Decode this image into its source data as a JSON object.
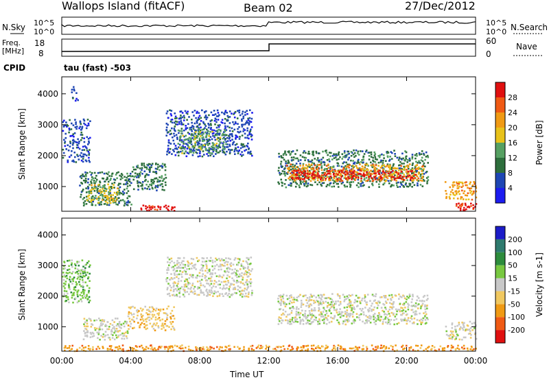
{
  "header": {
    "station": "Wallops Island (fitACF)",
    "beam": "Beam 02",
    "date": "27/Dec/2012"
  },
  "status_panels": {
    "nsky_label": "N.Sky",
    "nsky_top": "10^5",
    "nsky_bottom": "10^0",
    "nsearch_label": "N.Search",
    "nsearch_top": "10^5",
    "nsearch_bottom": "10^0",
    "freq_label": "Freq.",
    "freq_unit": "[MHz]",
    "freq_top": "18",
    "freq_bottom": "8",
    "nave_label": "Nave",
    "nave_top": "60",
    "nave_bottom": "0",
    "cpid_label": "CPID",
    "cpid_value": "tau (fast) -503"
  },
  "colors": {
    "power": [
      "#1c1cf0",
      "#1e46b4",
      "#2d6e3c",
      "#56a062",
      "#e8c21a",
      "#f09a14",
      "#f05a14",
      "#e01010"
    ],
    "velocity": [
      "#e01010",
      "#f05a14",
      "#f09a14",
      "#f0c860",
      "#c8c8c8",
      "#78c840",
      "#2d8c3c",
      "#2e7a6e",
      "#1c1cc8"
    ]
  },
  "chart_data": [
    {
      "type": "heatmap",
      "title": "Power",
      "xlabel": "Time UT",
      "ylabel": "Slant Range [km]",
      "x_ticks": [
        "00:00",
        "04:00",
        "08:00",
        "12:00",
        "16:00",
        "20:00",
        "00:00"
      ],
      "y_ticks": [
        1000,
        2000,
        3000,
        4000
      ],
      "ylim": [
        200,
        4550
      ],
      "colorbar_label": "Power [dB]",
      "colorbar_ticks": [
        4,
        8,
        12,
        16,
        20,
        24,
        28
      ],
      "regions": [
        {
          "t0": 0.0,
          "t1": 1.6,
          "r0": 1800,
          "r1": 3200,
          "level": 1
        },
        {
          "t0": 0.5,
          "t1": 0.9,
          "r0": 3800,
          "r1": 4300,
          "level": 1
        },
        {
          "t0": 1.0,
          "t1": 4.0,
          "r0": 400,
          "r1": 1500,
          "level": 2
        },
        {
          "t0": 1.4,
          "t1": 3.2,
          "r0": 500,
          "r1": 1100,
          "level": 4
        },
        {
          "t0": 4.0,
          "t1": 6.0,
          "r0": 900,
          "r1": 1800,
          "level": 2
        },
        {
          "t0": 4.5,
          "t1": 6.5,
          "r0": 230,
          "r1": 420,
          "level": 7
        },
        {
          "t0": 6.0,
          "t1": 11.0,
          "r0": 2000,
          "r1": 3500,
          "level": 1
        },
        {
          "t0": 6.7,
          "t1": 9.5,
          "r0": 2100,
          "r1": 2900,
          "level": 3
        },
        {
          "t0": 12.5,
          "t1": 21.2,
          "r0": 1000,
          "r1": 2200,
          "level": 2
        },
        {
          "t0": 13.0,
          "t1": 21.0,
          "r0": 1200,
          "r1": 1750,
          "level": 5
        },
        {
          "t0": 13.3,
          "t1": 20.5,
          "r0": 1250,
          "r1": 1550,
          "level": 7
        },
        {
          "t0": 22.2,
          "t1": 24.0,
          "r0": 600,
          "r1": 1200,
          "level": 5
        },
        {
          "t0": 22.8,
          "t1": 24.0,
          "r0": 250,
          "r1": 500,
          "level": 7
        }
      ]
    },
    {
      "type": "heatmap",
      "title": "Velocity",
      "xlabel": "Time UT",
      "ylabel": "Slant Range [km]",
      "x_ticks": [
        "00:00",
        "04:00",
        "08:00",
        "12:00",
        "16:00",
        "20:00",
        "00:00"
      ],
      "y_ticks": [
        1000,
        2000,
        3000,
        4000
      ],
      "ylim": [
        200,
        4550
      ],
      "colorbar_label": "Velocity [m s-1]",
      "colorbar_ticks": [
        -200,
        -100,
        -50,
        -15,
        15,
        50,
        100,
        200
      ],
      "regions": [
        {
          "t0": 0.0,
          "t1": 1.6,
          "r0": 1800,
          "r1": 3200,
          "level": 5
        },
        {
          "t0": 1.2,
          "t1": 3.8,
          "r0": 600,
          "r1": 1300,
          "level": 4
        },
        {
          "t0": 3.8,
          "t1": 6.5,
          "r0": 900,
          "r1": 1700,
          "level": 3
        },
        {
          "t0": 6.0,
          "t1": 11.0,
          "r0": 2000,
          "r1": 3300,
          "level": 4
        },
        {
          "t0": 12.5,
          "t1": 21.2,
          "r0": 1100,
          "r1": 2100,
          "level": 4
        },
        {
          "t0": 0.0,
          "t1": 24.0,
          "r0": 230,
          "r1": 420,
          "level": 2
        },
        {
          "t0": 22.2,
          "t1": 24.0,
          "r0": 600,
          "r1": 1200,
          "level": 4
        }
      ]
    }
  ]
}
